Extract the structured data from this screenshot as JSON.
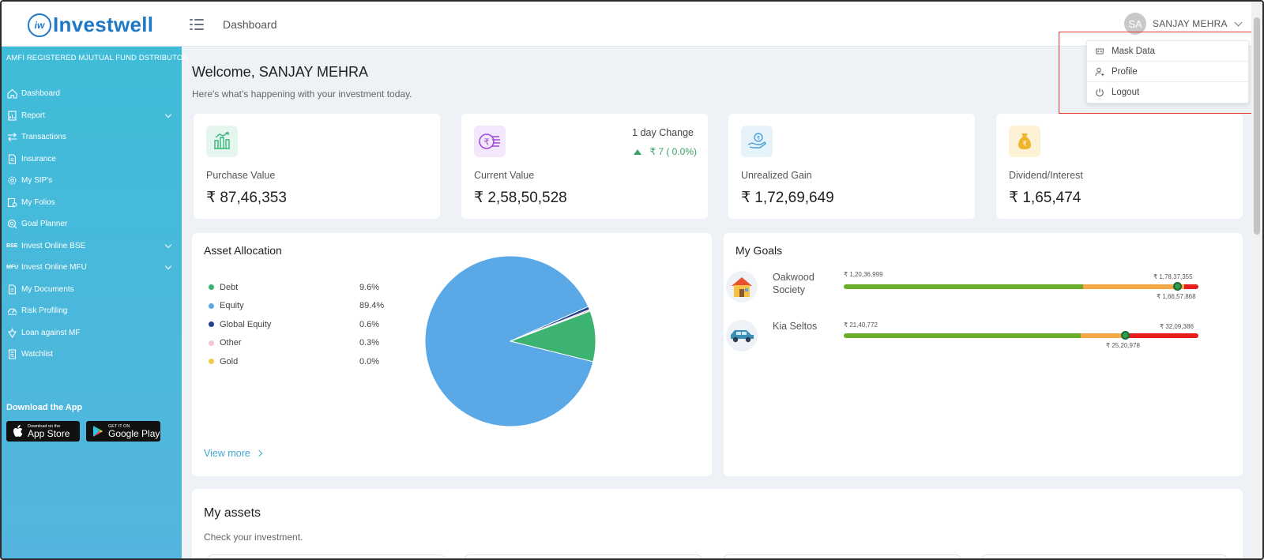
{
  "header": {
    "logo_text": "Investwell",
    "logo_mark": "iw",
    "title": "Dashboard",
    "user_initials": "SA",
    "user_name": "SANJAY MEHRA"
  },
  "user_menu": {
    "items": [
      {
        "label": "Mask Data",
        "icon": "mask-icon"
      },
      {
        "label": "Profile",
        "icon": "profile-icon"
      },
      {
        "label": "Logout",
        "icon": "power-icon"
      }
    ]
  },
  "sidebar": {
    "tagline": "AMFI REGISTERED MJUTUAL FUND DSTRIBUTOR",
    "items": [
      {
        "label": "Dashboard",
        "icon": "home-icon"
      },
      {
        "label": "Report",
        "icon": "report-icon",
        "expandable": true
      },
      {
        "label": "Transactions",
        "icon": "transfer-icon"
      },
      {
        "label": "Insurance",
        "icon": "document-icon"
      },
      {
        "label": "My SIP's",
        "icon": "gear-icon"
      },
      {
        "label": "My Folios",
        "icon": "folio-icon"
      },
      {
        "label": "Goal Planner",
        "icon": "target-icon"
      },
      {
        "label": "Invest Online BSE",
        "prefix": "BSE",
        "expandable": true
      },
      {
        "label": "Invest Online MFU",
        "prefix": "MFU",
        "expandable": true
      },
      {
        "label": "My Documents",
        "icon": "document-icon"
      },
      {
        "label": "Risk Profiling",
        "icon": "gauge-icon"
      },
      {
        "label": "Loan against MF",
        "icon": "loan-icon"
      },
      {
        "label": "Watchlist",
        "icon": "list-icon"
      }
    ],
    "download_title": "Download the App",
    "app_store": {
      "small": "Download on the",
      "big": "App Store"
    },
    "google_play": {
      "small": "GET IT ON",
      "big": "Google Play"
    }
  },
  "welcome": {
    "title": "Welcome, SANJAY MEHRA",
    "subtitle": "Here's what's happening with your investment today."
  },
  "stats": [
    {
      "label": "Purchase Value",
      "value": "₹ 87,46,353",
      "icon": "building-growth-icon",
      "color": "#e4f6ee"
    },
    {
      "label": "Current Value",
      "value": "₹ 2,58,50,528",
      "icon": "rupee-coins-icon",
      "color": "#f3e8fb"
    },
    {
      "label": "Unrealized Gain",
      "value": "₹ 1,72,69,649",
      "icon": "hand-money-icon",
      "color": "#e6f3fb"
    },
    {
      "label": "Dividend/Interest",
      "value": "₹ 1,65,474",
      "icon": "money-bag-icon",
      "color": "#fdf1d6"
    }
  ],
  "day_change": {
    "label": "1 day Change",
    "value": "₹ 7 ( 0.0%)"
  },
  "asset_allocation": {
    "title": "Asset Allocation",
    "view_more": "View more",
    "items": [
      {
        "name": "Debt",
        "pct": "9.6%",
        "color": "#3cb371"
      },
      {
        "name": "Equity",
        "pct": "89.4%",
        "color": "#5aa8e6"
      },
      {
        "name": "Global Equity",
        "pct": "0.6%",
        "color": "#1f3f8f"
      },
      {
        "name": "Other",
        "pct": "0.3%",
        "color": "#f7c6d3"
      },
      {
        "name": "Gold",
        "pct": "0.0%",
        "color": "#f2c94c"
      }
    ]
  },
  "chart_data": {
    "type": "pie",
    "title": "Asset Allocation",
    "categories": [
      "Debt",
      "Equity",
      "Global Equity",
      "Other",
      "Gold"
    ],
    "values": [
      9.6,
      89.4,
      0.6,
      0.3,
      0.0
    ],
    "colors": [
      "#3cb371",
      "#5aa8e6",
      "#1f3f8f",
      "#f7c6d3",
      "#f2c94c"
    ]
  },
  "goals": {
    "title": "My Goals",
    "items": [
      {
        "name": "Oakwood Society",
        "icon": "house-icon",
        "start": "₹ 1,20,36,999",
        "target": "₹ 1,78,37,355",
        "current": "₹ 1,66,57,868",
        "green": 0.674,
        "orange": 0.285,
        "marker": 0.94
      },
      {
        "name": "Kia Seltos",
        "icon": "car-icon",
        "start": "₹ 21,40,772",
        "target": "₹ 32,09,386",
        "current": "₹ 25,20,978",
        "green": 0.668,
        "orange": 0.128,
        "marker": 0.793
      }
    ]
  },
  "assets": {
    "title": "My assets",
    "subtitle": "Check your investment."
  }
}
